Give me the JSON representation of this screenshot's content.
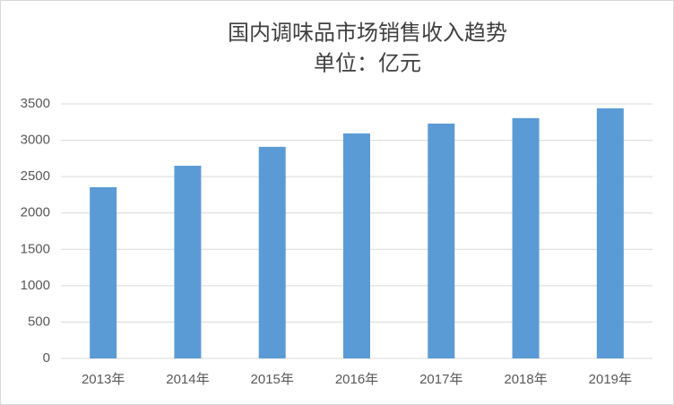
{
  "chart_data": {
    "type": "bar",
    "title": "国内调味品市场销售收入趋势",
    "subtitle": "单位：亿元",
    "categories": [
      "2013年",
      "2014年",
      "2015年",
      "2016年",
      "2017年",
      "2018年",
      "2019年"
    ],
    "values": [
      2355,
      2650,
      2910,
      3095,
      3230,
      3305,
      3440
    ],
    "color": "#5b9bd5",
    "ylim": [
      0,
      3500
    ],
    "yticks": [
      0,
      500,
      1000,
      1500,
      2000,
      2500,
      3000,
      3500
    ],
    "grid": true
  }
}
